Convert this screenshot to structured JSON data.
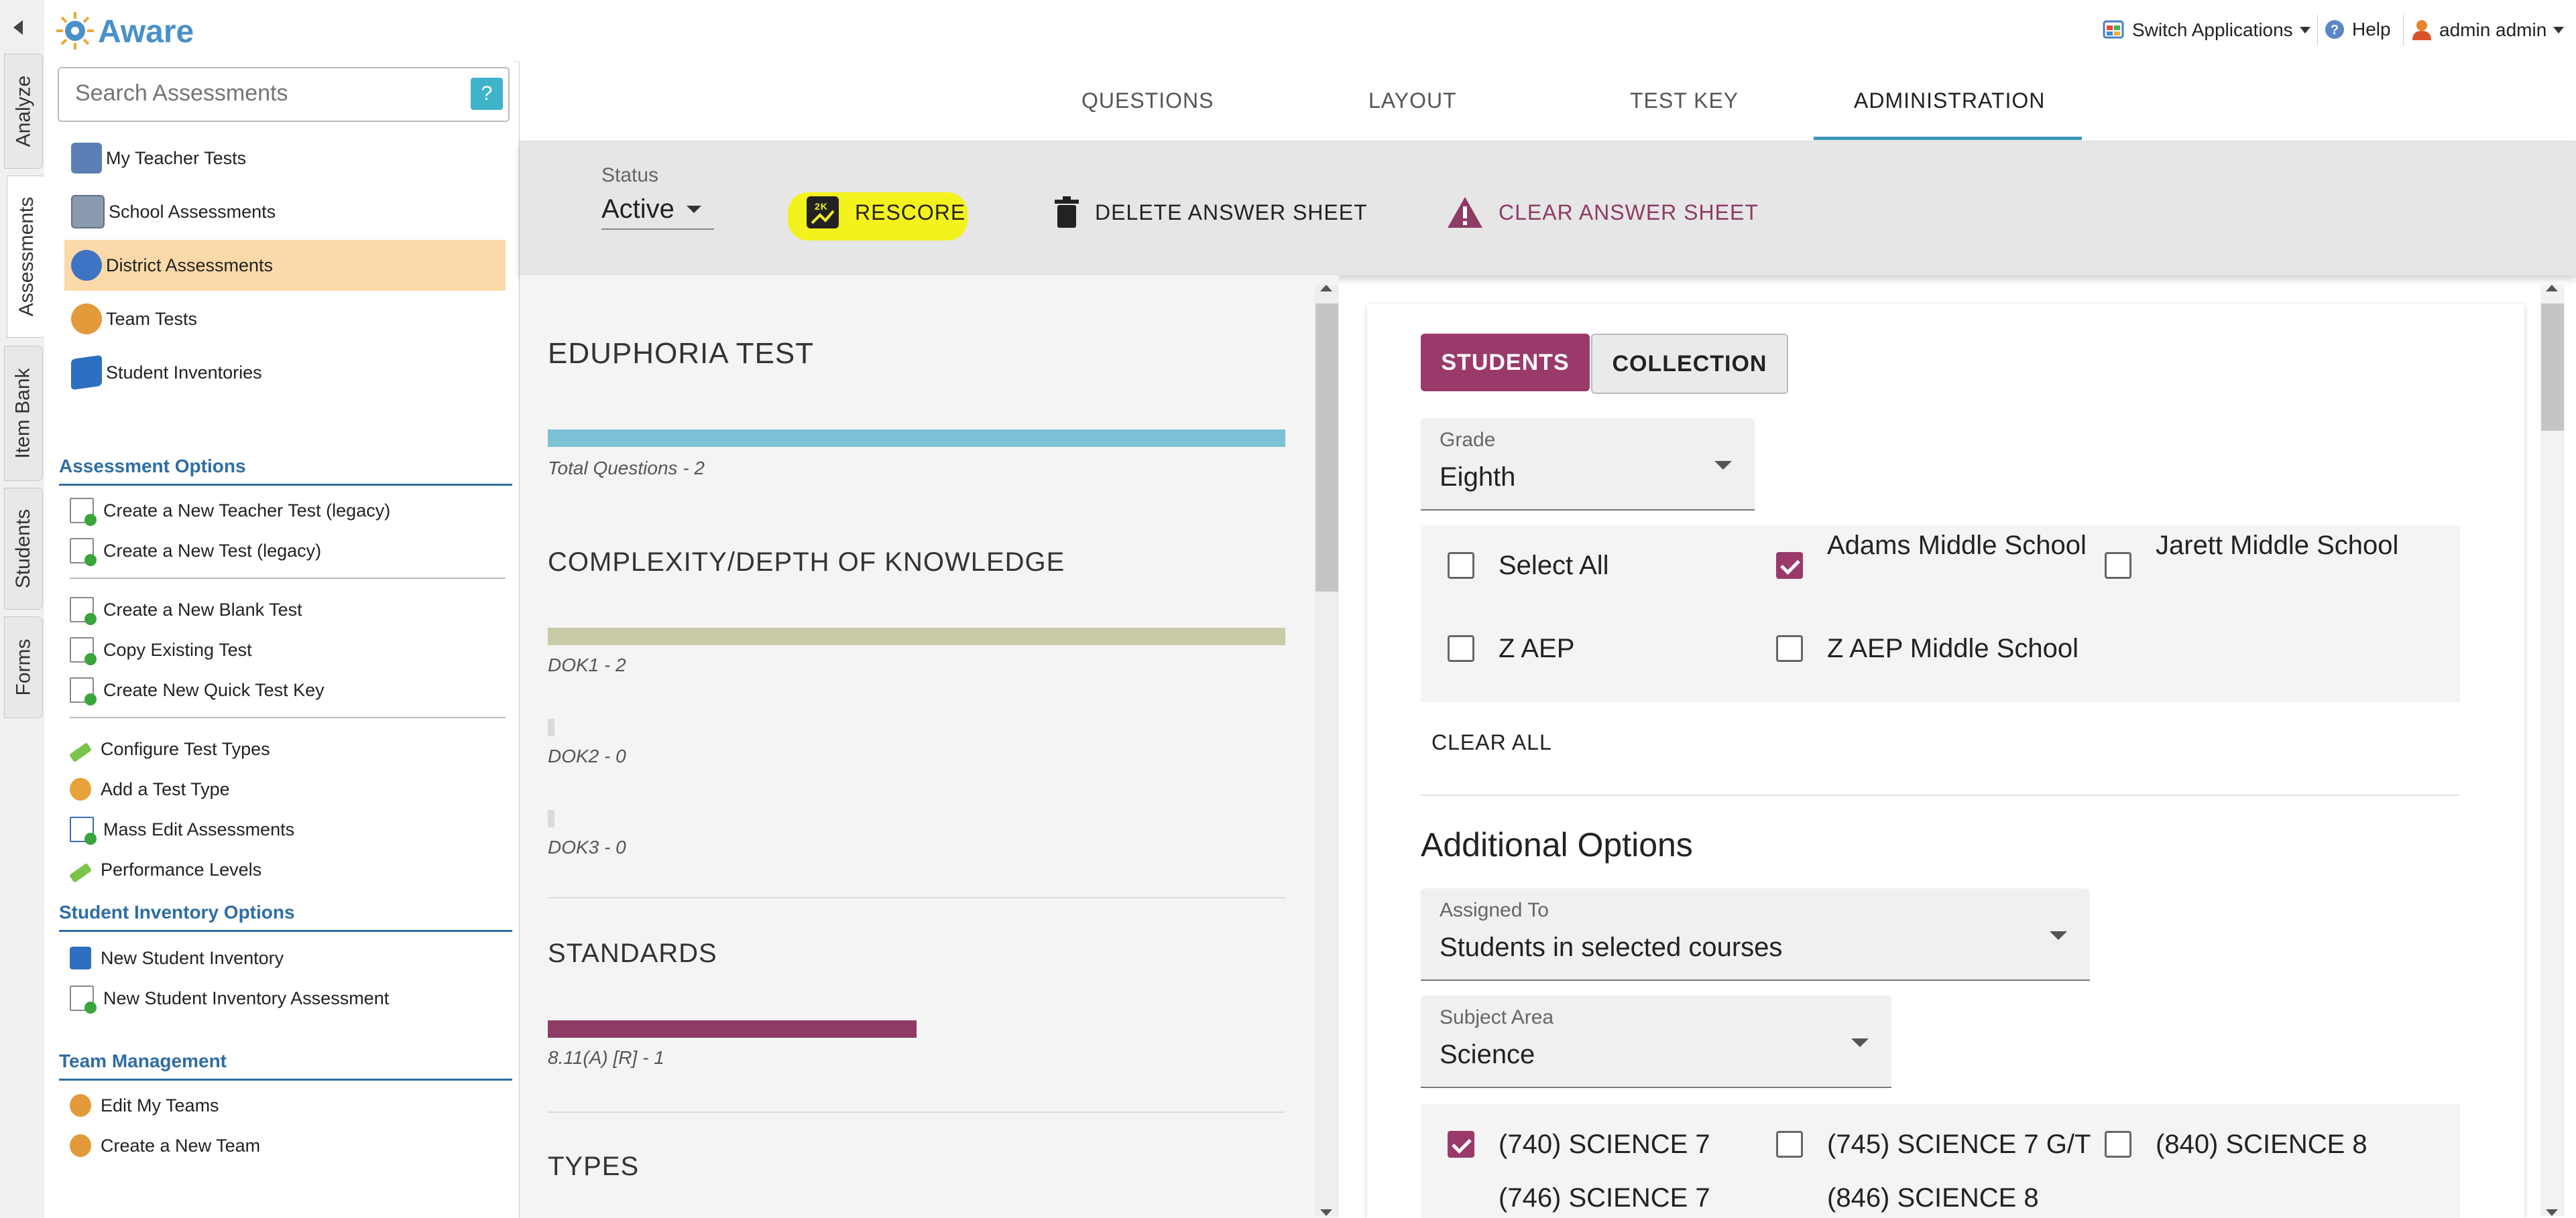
{
  "app": {
    "name": "Aware"
  },
  "header": {
    "switch_apps": "Switch Applications",
    "help": "Help",
    "user": "admin admin"
  },
  "rail_tabs": [
    "Analyze",
    "Assessments",
    "Item Bank",
    "Students",
    "Forms"
  ],
  "sidebar": {
    "search_placeholder": "Search Assessments",
    "help_label": "?",
    "nav": [
      {
        "label": "My Teacher Tests",
        "icon": "teacher-icon"
      },
      {
        "label": "School Assessments",
        "icon": "school-building-icon"
      },
      {
        "label": "District Assessments",
        "icon": "globe-icon",
        "active": true
      },
      {
        "label": "Team Tests",
        "icon": "team-icon"
      },
      {
        "label": "Student Inventories",
        "icon": "book-icon"
      }
    ],
    "assessment_options_title": "Assessment Options",
    "assessment_options": [
      "Create a New Teacher Test (legacy)",
      "Create a New Test (legacy)",
      "Create a New Blank Test",
      "Copy Existing Test",
      "Create New Quick Test Key",
      "Configure Test Types",
      "Add a Test Type",
      "Mass Edit Assessments",
      "Performance Levels"
    ],
    "student_inventory_title": "Student Inventory Options",
    "student_inventory_options": [
      "New Student Inventory",
      "New Student Inventory Assessment"
    ],
    "team_title": "Team Management",
    "team_options": [
      "Edit My Teams",
      "Create a New Team"
    ]
  },
  "tabs": [
    "QUESTIONS",
    "LAYOUT",
    "TEST KEY",
    "ADMINISTRATION"
  ],
  "toolbar": {
    "status_label": "Status",
    "status_value": "Active",
    "rescore": "RESCORE",
    "delete": "DELETE ANSWER SHEET",
    "clear": "CLEAR ANSWER SHEET",
    "accent_clear": "#8e3b66",
    "highlight": "#f4f21d"
  },
  "summary": {
    "title": "EDUPHORIA TEST",
    "total_questions": "Total Questions",
    "total_questions_value": "2",
    "complexity_title": "COMPLEXITY/DEPTH OF KNOWLEDGE",
    "dok": [
      {
        "label": "DOK1",
        "value": "2",
        "fraction": 1.0
      },
      {
        "label": "DOK2",
        "value": "0",
        "fraction": 0
      },
      {
        "label": "DOK3",
        "value": "0",
        "fraction": 0
      }
    ],
    "standards_title": "STANDARDS",
    "standards": [
      {
        "label": "8.11(A) [R]",
        "value": "1",
        "fraction": 0.5
      }
    ],
    "types_title": "TYPES"
  },
  "admin": {
    "seg_students": "STUDENTS",
    "seg_collection": "COLLECTION",
    "grade_label": "Grade",
    "grade_value": "Eighth",
    "schools": [
      {
        "label": "Select All",
        "checked": false
      },
      {
        "label": "Adams Middle School",
        "checked": true
      },
      {
        "label": "Jarett Middle School",
        "checked": false
      },
      {
        "label": "Z AEP",
        "checked": false
      },
      {
        "label": "Z AEP Middle School",
        "checked": false
      }
    ],
    "clear_all": "CLEAR ALL",
    "additional_options": "Additional Options",
    "assigned_to_label": "Assigned To",
    "assigned_to_value": "Students in selected courses",
    "subject_label": "Subject Area",
    "subject_value": "Science",
    "courses": [
      {
        "label": "(740) SCIENCE 7",
        "checked": true
      },
      {
        "label": "(745) SCIENCE 7 G/T",
        "checked": false
      },
      {
        "label": "(840) SCIENCE 8",
        "checked": false
      },
      {
        "label": "(746) SCIENCE 7",
        "checked": false
      },
      {
        "label": "(846) SCIENCE 8",
        "checked": false
      }
    ],
    "accent": "#993a6b"
  }
}
